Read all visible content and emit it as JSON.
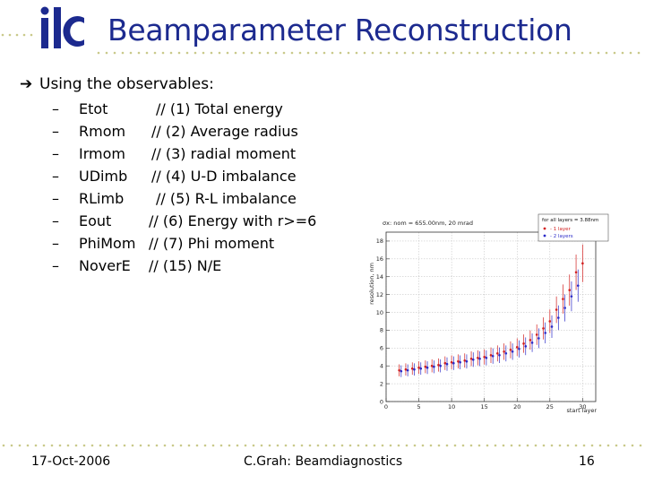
{
  "slide": {
    "title": "Beamparameter Reconstruction",
    "bullet": "Using the observables:",
    "items": [
      {
        "name": "Etot",
        "desc": "// (1) Total energy"
      },
      {
        "name": "Rmom",
        "desc": "// (2) Average radius"
      },
      {
        "name": "Irmom",
        "desc": "// (3) radial moment"
      },
      {
        "name": "UDimb",
        "desc": "// (4) U-D imbalance"
      },
      {
        "name": "RLimb",
        "desc": "// (5) R-L imbalance"
      },
      {
        "name": "Eout",
        "desc": "// (6) Energy with r>=6"
      },
      {
        "name": "PhiMom",
        "desc": "// (7) Phi moment"
      },
      {
        "name": "NoverE",
        "desc": "// (15) N/E"
      }
    ],
    "footer": {
      "date": "17-Oct-2006",
      "author": "C.Grah: Beamdiagnostics",
      "page": "16"
    }
  },
  "chart_data": {
    "type": "scatter",
    "title": "σx: nom = 655.00nm, 20 mrad",
    "xlabel": "start layer",
    "ylabel": "resolution, nm",
    "xlim": [
      0,
      32
    ],
    "ylim": [
      0,
      19
    ],
    "xticks": [
      0,
      5,
      10,
      15,
      20,
      25,
      30
    ],
    "yticks": [
      0,
      2,
      4,
      6,
      8,
      10,
      12,
      14,
      16,
      18
    ],
    "grid": true,
    "legend_position": "top-right",
    "legend_header": "for all layers = 3.88nm",
    "series": [
      {
        "name": "- 1 layer",
        "color": "#d22020",
        "x": [
          2,
          3,
          4,
          5,
          6,
          7,
          8,
          9,
          10,
          11,
          12,
          13,
          14,
          15,
          16,
          17,
          18,
          19,
          20,
          21,
          22,
          23,
          24,
          25,
          26,
          27,
          28,
          29,
          30
        ],
        "y": [
          3.5,
          3.6,
          3.7,
          3.8,
          3.9,
          4.0,
          4.1,
          4.3,
          4.4,
          4.5,
          4.6,
          4.8,
          4.9,
          5.0,
          5.2,
          5.4,
          5.6,
          5.8,
          6.1,
          6.5,
          6.9,
          7.5,
          8.2,
          9.0,
          10.3,
          11.5,
          12.5,
          14.5,
          15.5
        ]
      },
      {
        "name": "- 2 layers",
        "color": "#2a2ac8",
        "x": [
          2.3,
          3.3,
          4.3,
          5.3,
          6.3,
          7.3,
          8.3,
          9.3,
          10.3,
          11.3,
          12.3,
          13.3,
          14.3,
          15.3,
          16.3,
          17.3,
          18.3,
          19.3,
          20.3,
          21.3,
          22.3,
          23.3,
          24.3,
          25.3,
          26.3,
          27.3,
          28.3,
          29.3
        ],
        "y": [
          3.4,
          3.5,
          3.6,
          3.7,
          3.8,
          3.9,
          4.0,
          4.2,
          4.3,
          4.4,
          4.5,
          4.7,
          4.8,
          4.9,
          5.1,
          5.2,
          5.4,
          5.6,
          5.9,
          6.2,
          6.6,
          7.1,
          7.7,
          8.4,
          9.4,
          10.5,
          11.8,
          13.0
        ]
      }
    ]
  }
}
